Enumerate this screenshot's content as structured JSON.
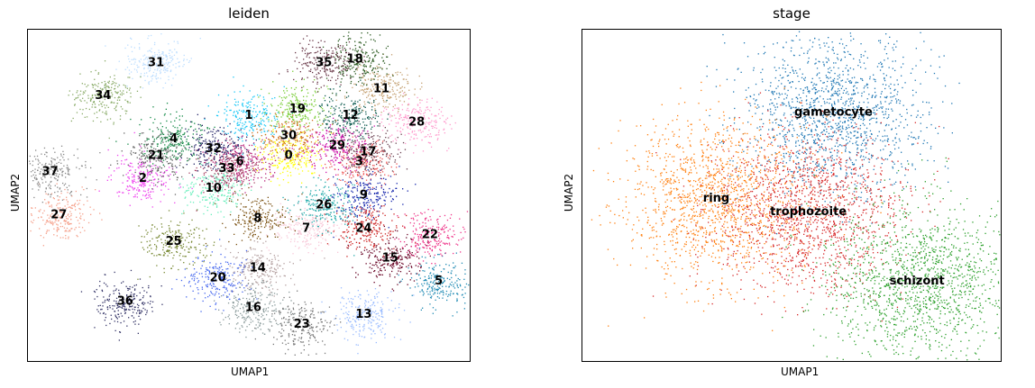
{
  "chart_data": [
    {
      "type": "scatter",
      "title": "leiden",
      "xlabel": "UMAP1",
      "ylabel": "UMAP2",
      "grid": false,
      "legend": "on data",
      "clusters": [
        {
          "label": "0",
          "x": 0.59,
          "y": 0.62,
          "color": "#ffff00"
        },
        {
          "label": "1",
          "x": 0.5,
          "y": 0.74,
          "color": "#18c7f6"
        },
        {
          "label": "2",
          "x": 0.26,
          "y": 0.55,
          "color": "#ee44ee"
        },
        {
          "label": "3",
          "x": 0.75,
          "y": 0.6,
          "color": "#ee5555"
        },
        {
          "label": "4",
          "x": 0.33,
          "y": 0.67,
          "color": "#118844"
        },
        {
          "label": "5",
          "x": 0.93,
          "y": 0.24,
          "color": "#1f8ab4"
        },
        {
          "label": "6",
          "x": 0.48,
          "y": 0.6,
          "color": "#b8207a"
        },
        {
          "label": "7",
          "x": 0.63,
          "y": 0.4,
          "color": "#f8c8d8"
        },
        {
          "label": "8",
          "x": 0.52,
          "y": 0.43,
          "color": "#7a5010"
        },
        {
          "label": "9",
          "x": 0.76,
          "y": 0.5,
          "color": "#1122aa"
        },
        {
          "label": "10",
          "x": 0.42,
          "y": 0.52,
          "color": "#66eebb"
        },
        {
          "label": "11",
          "x": 0.8,
          "y": 0.82,
          "color": "#c4a070"
        },
        {
          "label": "12",
          "x": 0.73,
          "y": 0.74,
          "color": "#0c5a4e"
        },
        {
          "label": "13",
          "x": 0.76,
          "y": 0.14,
          "color": "#99bbff"
        },
        {
          "label": "14",
          "x": 0.52,
          "y": 0.28,
          "color": "#b4a0a0"
        },
        {
          "label": "15",
          "x": 0.82,
          "y": 0.31,
          "color": "#660022"
        },
        {
          "label": "16",
          "x": 0.51,
          "y": 0.16,
          "color": "#889999"
        },
        {
          "label": "17",
          "x": 0.77,
          "y": 0.63,
          "color": "#6a4050"
        },
        {
          "label": "18",
          "x": 0.74,
          "y": 0.91,
          "color": "#2a5a20"
        },
        {
          "label": "19",
          "x": 0.61,
          "y": 0.76,
          "color": "#77cc33"
        },
        {
          "label": "20",
          "x": 0.43,
          "y": 0.25,
          "color": "#4466ee"
        },
        {
          "label": "21",
          "x": 0.29,
          "y": 0.62,
          "color": "#666666"
        },
        {
          "label": "22",
          "x": 0.91,
          "y": 0.38,
          "color": "#ee3388"
        },
        {
          "label": "23",
          "x": 0.62,
          "y": 0.11,
          "color": "#777777"
        },
        {
          "label": "24",
          "x": 0.76,
          "y": 0.4,
          "color": "#cc2222"
        },
        {
          "label": "25",
          "x": 0.33,
          "y": 0.36,
          "color": "#778833"
        },
        {
          "label": "26",
          "x": 0.67,
          "y": 0.47,
          "color": "#22aaaa"
        },
        {
          "label": "27",
          "x": 0.07,
          "y": 0.44,
          "color": "#f5a08a"
        },
        {
          "label": "28",
          "x": 0.88,
          "y": 0.72,
          "color": "#ff99cc"
        },
        {
          "label": "29",
          "x": 0.7,
          "y": 0.65,
          "color": "#cc11aa"
        },
        {
          "label": "30",
          "x": 0.59,
          "y": 0.68,
          "color": "#d07020"
        },
        {
          "label": "31",
          "x": 0.29,
          "y": 0.9,
          "color": "#bbddff"
        },
        {
          "label": "32",
          "x": 0.42,
          "y": 0.64,
          "color": "#222266"
        },
        {
          "label": "33",
          "x": 0.45,
          "y": 0.58,
          "color": "#aa4466"
        },
        {
          "label": "34",
          "x": 0.17,
          "y": 0.8,
          "color": "#88aa66"
        },
        {
          "label": "35",
          "x": 0.67,
          "y": 0.9,
          "color": "#663344"
        },
        {
          "label": "36",
          "x": 0.22,
          "y": 0.18,
          "color": "#333366"
        },
        {
          "label": "37",
          "x": 0.05,
          "y": 0.57,
          "color": "#888888"
        }
      ]
    },
    {
      "type": "scatter",
      "title": "stage",
      "xlabel": "UMAP1",
      "ylabel": "UMAP2",
      "grid": false,
      "legend": "on data",
      "clusters": [
        {
          "label": "gametocyte",
          "x": 0.6,
          "y": 0.75,
          "color": "#1f77b4"
        },
        {
          "label": "ring",
          "x": 0.32,
          "y": 0.49,
          "color": "#ff7f0e"
        },
        {
          "label": "trophozoite",
          "x": 0.54,
          "y": 0.45,
          "color": "#d62728"
        },
        {
          "label": "schizont",
          "x": 0.8,
          "y": 0.24,
          "color": "#2ca02c"
        }
      ]
    }
  ]
}
